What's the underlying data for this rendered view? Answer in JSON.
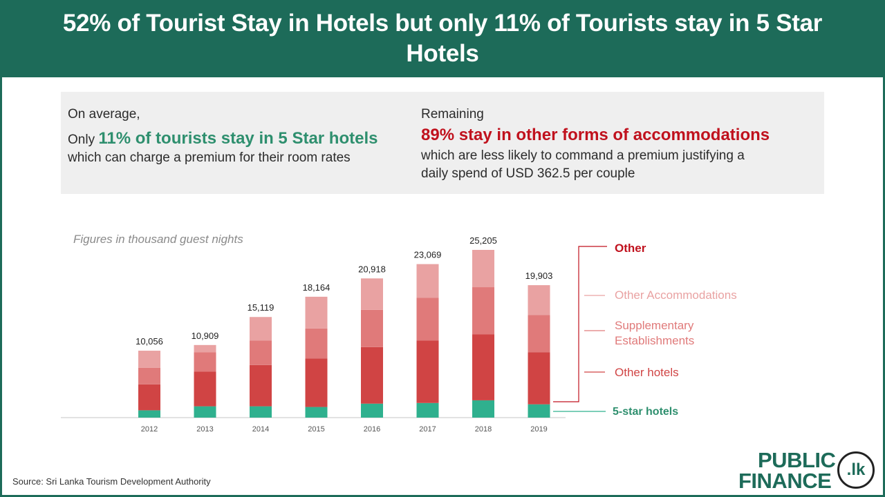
{
  "header": {
    "title": "52% of Tourist Stay in Hotels but only 11% of Tourists stay in 5 Star Hotels"
  },
  "summary": {
    "left": {
      "intro": "On average,",
      "prefix": "Only ",
      "highlight": "11% of tourists stay in 5 Star hotels",
      "detail": "which can charge a premium for their room rates"
    },
    "right": {
      "intro": "Remaining",
      "highlight": "89% stay in other forms of accommodations",
      "detail_line1": "which are less likely to command a premium justifying a",
      "detail_line2": "daily spend of USD 362.5 per couple"
    }
  },
  "chart_note": "Figures in thousand guest nights",
  "source": "Source:  Sri Lanka Tourism Development Authority",
  "logo": {
    "line1": "PUBLIC",
    "line2": "FINANCE",
    "badge": ".lk"
  },
  "colors": {
    "header_green": "#1d6b59",
    "five_star": "#2fb08e",
    "other_hotels": "#d04444",
    "supplementary": "#e07a7a",
    "other_accommodations": "#e9a2a2",
    "other_label": "#c0111d"
  },
  "chart_data": {
    "type": "bar",
    "stacked": true,
    "categories": [
      "2012",
      "2013",
      "2014",
      "2015",
      "2016",
      "2017",
      "2018",
      "2019"
    ],
    "totals": [
      10056,
      10909,
      15119,
      18164,
      20918,
      23069,
      25205,
      19903
    ],
    "total_labels": [
      "10,056",
      "10,909",
      "15,119",
      "18,164",
      "20,918",
      "23,069",
      "25,205",
      "19,903"
    ],
    "series": [
      {
        "name": "5-star hotels",
        "values": [
          1100,
          1700,
          1700,
          1600,
          2100,
          2200,
          2600,
          2000
        ]
      },
      {
        "name": "Other hotels",
        "values": [
          3900,
          5200,
          6200,
          7300,
          8500,
          9400,
          9900,
          7800
        ]
      },
      {
        "name": "Supplementary Establishments",
        "values": [
          2500,
          2900,
          3700,
          4500,
          5600,
          6400,
          7100,
          5600
        ]
      },
      {
        "name": "Other Accommodations",
        "values": [
          2556,
          1109,
          3519,
          4764,
          4718,
          5069,
          5605,
          4503
        ]
      }
    ],
    "legend_group_label": "Other",
    "ylim": [
      0,
      25205
    ],
    "grid": false
  }
}
